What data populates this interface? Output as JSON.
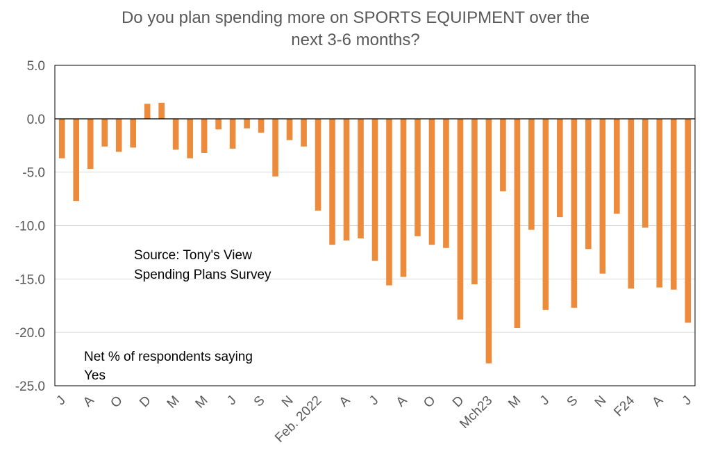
{
  "chart_data": {
    "type": "bar",
    "title_lines": [
      "Do you plan spending more on SPORTS EQUIPMENT over the",
      "next 3-6 months?"
    ],
    "ylim": [
      -25,
      5
    ],
    "yticks": [
      "5.0",
      "0.0",
      "-5.0",
      "-10.0",
      "-15.0",
      "-20.0",
      "-25.0"
    ],
    "ytick_values": [
      5,
      0,
      -5,
      -10,
      -15,
      -20,
      -25
    ],
    "grid": true,
    "bar_color": "#ED8B3D",
    "values": [
      -3.7,
      -7.7,
      -4.7,
      -2.6,
      -3.1,
      -2.7,
      1.4,
      1.5,
      -2.9,
      -3.7,
      -3.2,
      -1.0,
      -2.8,
      -0.9,
      -1.3,
      -5.4,
      -2.0,
      -2.6,
      -8.6,
      -11.8,
      -11.4,
      -11.2,
      -13.3,
      -15.6,
      -14.8,
      -11.0,
      -11.8,
      -12.1,
      -18.8,
      -15.5,
      -22.9,
      -6.8,
      -19.6,
      -10.4,
      -17.9,
      -9.2,
      -17.7,
      -12.2,
      -14.5,
      -8.9,
      -15.9,
      -10.2,
      -15.8,
      -16.0,
      -19.1
    ],
    "x_labels": [
      {
        "index": 0,
        "label": "J"
      },
      {
        "index": 2,
        "label": "A"
      },
      {
        "index": 4,
        "label": "O"
      },
      {
        "index": 6,
        "label": "D"
      },
      {
        "index": 8,
        "label": "M"
      },
      {
        "index": 10,
        "label": "M"
      },
      {
        "index": 12,
        "label": "J"
      },
      {
        "index": 14,
        "label": "S"
      },
      {
        "index": 16,
        "label": "N"
      },
      {
        "index": 18,
        "label": "Feb. 2022"
      },
      {
        "index": 20,
        "label": "A"
      },
      {
        "index": 22,
        "label": "J"
      },
      {
        "index": 24,
        "label": "A"
      },
      {
        "index": 26,
        "label": "O"
      },
      {
        "index": 28,
        "label": "D"
      },
      {
        "index": 30,
        "label": "Mch23"
      },
      {
        "index": 32,
        "label": "M"
      },
      {
        "index": 34,
        "label": "J"
      },
      {
        "index": 36,
        "label": "S"
      },
      {
        "index": 38,
        "label": "N"
      },
      {
        "index": 40,
        "label": "F24"
      },
      {
        "index": 42,
        "label": "A"
      },
      {
        "index": 44,
        "label": "J"
      }
    ],
    "annotations": {
      "source_lines": [
        "Source: Tony's View",
        "Spending Plans Survey"
      ],
      "note_lines": [
        "Net % of respondents saying",
        "Yes"
      ]
    }
  }
}
